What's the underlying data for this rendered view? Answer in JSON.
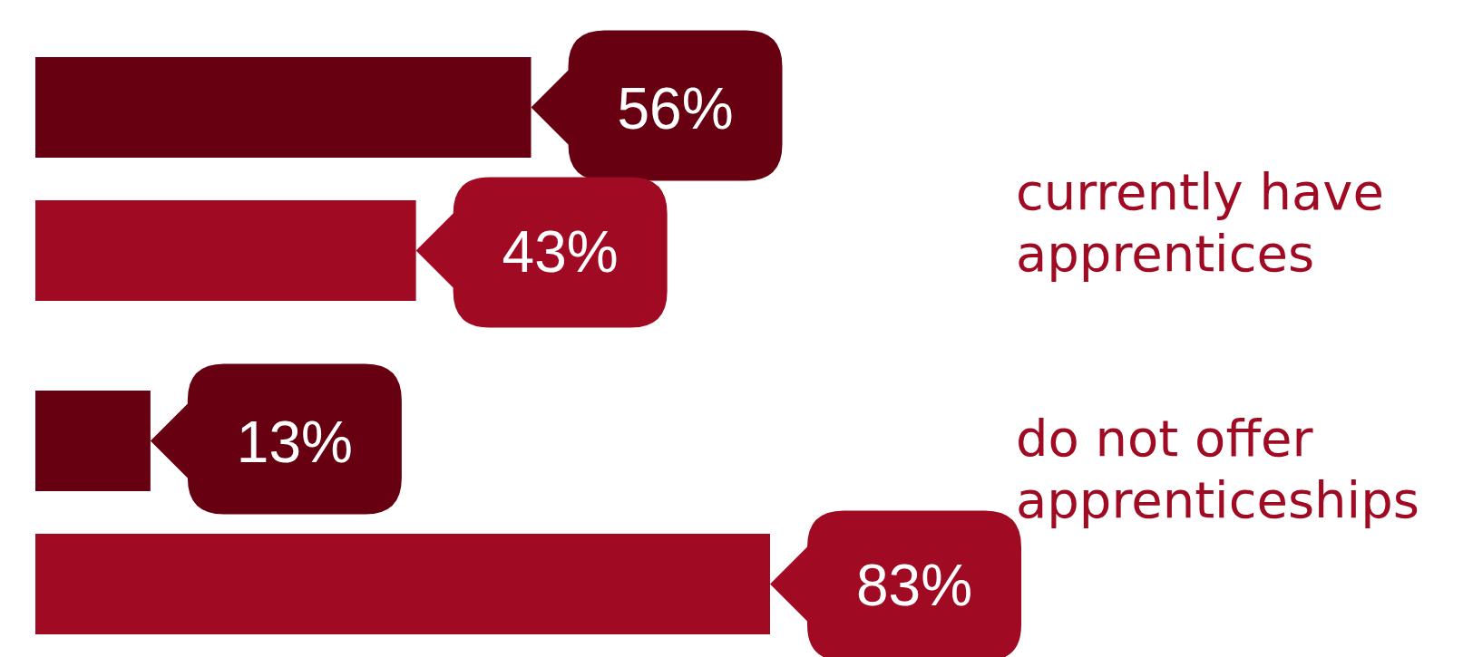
{
  "chart_data": {
    "type": "bar",
    "orientation": "horizontal",
    "categories": [
      "currently have apprentices",
      "do not offer apprenticeships"
    ],
    "series": [
      {
        "color": "#670010",
        "values": [
          56,
          13
        ],
        "value_labels": [
          "56%",
          "13%"
        ]
      },
      {
        "color": "#a00b23",
        "values": [
          43,
          83
        ],
        "value_labels": [
          "43%",
          "83%"
        ]
      }
    ],
    "legend": false
  }
}
